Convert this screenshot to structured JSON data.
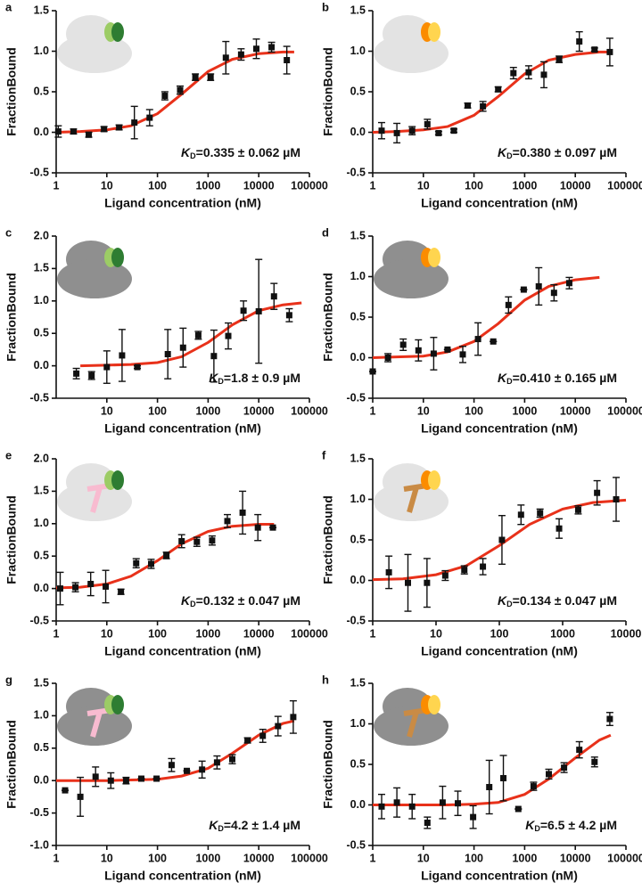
{
  "chart_data": [
    {
      "type": "scatter",
      "label": "a",
      "xlabel": "Ligand concentration (nM)",
      "ylabel": "FractionBound",
      "xlog": true,
      "xlim": [
        1,
        100000
      ],
      "xticks": [
        1,
        10,
        100,
        1000,
        10000,
        100000
      ],
      "ylim": [
        -0.5,
        1.5
      ],
      "yticks": [
        -0.5,
        {
          "value": 0,
          "label": "0.0"
        },
        0.5,
        {
          "value": 1,
          "label": "1.0"
        },
        1.5
      ],
      "annotation": {
        "symbol": "K",
        "subscript": "D",
        "text": "=0.335 ± 0.062 µM"
      },
      "points": {
        "color": "#111111",
        "x": [
          1.1,
          2.2,
          4.4,
          8.8,
          17.5,
          35,
          70,
          140,
          280,
          560,
          1120,
          2240,
          4480,
          8960,
          17900,
          35800
        ],
        "values": [
          0.01,
          0.01,
          -0.03,
          0.04,
          0.06,
          0.12,
          0.18,
          0.45,
          0.52,
          0.68,
          0.68,
          0.92,
          0.96,
          1.03,
          1.05,
          0.89
        ],
        "errors": [
          0.07,
          0.03,
          0.03,
          0.03,
          0.03,
          0.2,
          0.1,
          0.05,
          0.05,
          0.04,
          0.04,
          0.2,
          0.07,
          0.12,
          0.06,
          0.17
        ]
      },
      "fit": {
        "color": "#e8311a",
        "x": [
          1,
          3,
          10,
          30,
          100,
          300,
          1000,
          3000,
          10000,
          30000,
          50000
        ],
        "values": [
          0,
          0.01,
          0.03,
          0.08,
          0.23,
          0.47,
          0.75,
          0.9,
          0.97,
          0.99,
          0.99
        ]
      }
    },
    {
      "type": "scatter",
      "label": "b",
      "xlabel": "Ligand concentration (nM)",
      "ylabel": "FractionBound",
      "xlog": true,
      "xlim": [
        1,
        100000
      ],
      "xticks": [
        1,
        10,
        100,
        1000,
        10000,
        100000
      ],
      "ylim": [
        -0.5,
        1.5
      ],
      "yticks": [
        -0.5,
        {
          "value": 0,
          "label": "0.0"
        },
        0.5,
        {
          "value": 1,
          "label": "1.0"
        },
        1.5
      ],
      "annotation": {
        "symbol": "K",
        "subscript": "D",
        "text": "=0.380 ± 0.097 µM"
      },
      "points": {
        "color": "#111111",
        "x": [
          1.5,
          3,
          6,
          12,
          20,
          40,
          75,
          150,
          300,
          600,
          1200,
          2400,
          4800,
          12000,
          24000,
          48000
        ],
        "values": [
          0.02,
          -0.01,
          0.02,
          0.1,
          -0.01,
          0.02,
          0.33,
          0.32,
          0.53,
          0.73,
          0.74,
          0.71,
          0.9,
          1.12,
          1.02,
          0.99
        ],
        "errors": [
          0.1,
          0.12,
          0.05,
          0.06,
          0.02,
          0.02,
          0.03,
          0.06,
          0.03,
          0.07,
          0.08,
          0.16,
          0.04,
          0.12,
          0.02,
          0.17
        ]
      },
      "fit": {
        "color": "#e8311a",
        "x": [
          1,
          3,
          10,
          30,
          100,
          300,
          1000,
          3000,
          10000,
          30000,
          50000
        ],
        "values": [
          0,
          0.01,
          0.03,
          0.07,
          0.21,
          0.44,
          0.72,
          0.89,
          0.96,
          0.99,
          0.99
        ]
      }
    },
    {
      "type": "scatter",
      "label": "c",
      "xlabel": "Ligand concentration (nM)",
      "ylabel": "FractionBound",
      "xlog": true,
      "xlim": [
        1,
        100000
      ],
      "xticks": [
        10,
        100,
        1000,
        10000,
        100000
      ],
      "ylim": [
        -0.5,
        2.0
      ],
      "yticks": [
        -0.5,
        {
          "value": 0,
          "label": "0.0"
        },
        0.5,
        {
          "value": 1,
          "label": "1.0"
        },
        1.5,
        {
          "value": 2,
          "label": "2.0"
        }
      ],
      "annotation": {
        "symbol": "K",
        "subscript": "D",
        "text": "=1.8 ± 0.9 µM"
      },
      "points": {
        "color": "#111111",
        "x": [
          2.5,
          5,
          10,
          20,
          40,
          160,
          320,
          640,
          1300,
          2500,
          5000,
          10000,
          20000,
          40000
        ],
        "values": [
          -0.12,
          -0.15,
          -0.02,
          0.16,
          -0.02,
          0.18,
          0.28,
          0.47,
          0.15,
          0.46,
          0.85,
          0.84,
          1.07,
          0.78
        ],
        "errors": [
          0.08,
          0.06,
          0.25,
          0.4,
          0.02,
          0.38,
          0.3,
          0.06,
          0.4,
          0.2,
          0.15,
          0.8,
          0.2,
          0.1
        ]
      },
      "fit": {
        "color": "#e8311a",
        "x": [
          3,
          10,
          30,
          100,
          300,
          1000,
          3000,
          10000,
          30000,
          70000
        ],
        "values": [
          0,
          0.01,
          0.02,
          0.05,
          0.14,
          0.36,
          0.63,
          0.85,
          0.94,
          0.97
        ]
      }
    },
    {
      "type": "scatter",
      "label": "d",
      "xlabel": "Ligand concentration (nM)",
      "ylabel": "FractionBound",
      "xlog": true,
      "xlim": [
        1,
        100000
      ],
      "xticks": [
        1,
        10,
        100,
        1000,
        10000,
        100000
      ],
      "ylim": [
        -0.5,
        1.5
      ],
      "yticks": [
        -0.5,
        {
          "value": 0,
          "label": "0.0"
        },
        0.5,
        {
          "value": 1,
          "label": "1.0"
        },
        1.5
      ],
      "annotation": {
        "symbol": "K",
        "subscript": "D",
        "text": "=0.410 ± 0.165 µM"
      },
      "points": {
        "color": "#111111",
        "x": [
          1,
          2,
          4,
          8,
          16,
          30,
          60,
          120,
          240,
          480,
          960,
          1900,
          3800,
          7600
        ],
        "values": [
          -0.17,
          0,
          0.16,
          0.09,
          0.05,
          0.1,
          0.04,
          0.23,
          0.2,
          0.65,
          0.84,
          0.88,
          0.8,
          0.92
        ],
        "errors": [
          0,
          0.05,
          0.07,
          0.13,
          0.2,
          0,
          0.1,
          0.2,
          0,
          0.1,
          0,
          0.23,
          0.1,
          0.07
        ]
      },
      "fit": {
        "color": "#e8311a",
        "x": [
          1,
          3,
          10,
          30,
          100,
          300,
          1000,
          3000,
          10000,
          30000
        ],
        "values": [
          0,
          0.01,
          0.02,
          0.07,
          0.2,
          0.42,
          0.71,
          0.88,
          0.96,
          0.99
        ]
      }
    },
    {
      "type": "scatter",
      "label": "e",
      "xlabel": "Ligand concentration (nM)",
      "ylabel": "FractionBound",
      "xlog": true,
      "xlim": [
        1,
        100000
      ],
      "xticks": [
        1,
        10,
        100,
        1000,
        10000,
        100000
      ],
      "ylim": [
        -0.5,
        2.0
      ],
      "yticks": [
        -0.5,
        {
          "value": 0,
          "label": "0.0"
        },
        0.5,
        {
          "value": 1,
          "label": "1.0"
        },
        1.5,
        {
          "value": 2,
          "label": "2.0"
        }
      ],
      "annotation": {
        "symbol": "K",
        "subscript": "D",
        "text": "=0.132 ± 0.047 µM"
      },
      "points": {
        "color": "#111111",
        "x": [
          1.2,
          2.4,
          4.8,
          9.5,
          19,
          38,
          75,
          150,
          300,
          600,
          1200,
          2400,
          4800,
          9600,
          19000
        ],
        "values": [
          0,
          0.02,
          0.07,
          0.03,
          -0.05,
          0.39,
          0.38,
          0.51,
          0.73,
          0.72,
          0.74,
          1.04,
          1.17,
          0.94,
          0.94
        ],
        "errors": [
          0.25,
          0.07,
          0.18,
          0.25,
          0.04,
          0.07,
          0.07,
          0.05,
          0.1,
          0.07,
          0.07,
          0.1,
          0.33,
          0.2,
          0
        ]
      },
      "fit": {
        "color": "#e8311a",
        "x": [
          1,
          3,
          10,
          30,
          100,
          300,
          1000,
          3000,
          10000,
          20000
        ],
        "values": [
          0.01,
          0.02,
          0.07,
          0.19,
          0.43,
          0.69,
          0.88,
          0.96,
          0.99,
          0.99
        ]
      }
    },
    {
      "type": "scatter",
      "label": "f",
      "xlabel": "Ligand concentration (nM)",
      "ylabel": "FractionBound",
      "xlog": true,
      "xlim": [
        1,
        10000
      ],
      "xticks": [
        1,
        10,
        100,
        1000,
        10000
      ],
      "ylim": [
        -0.5,
        1.5
      ],
      "yticks": [
        -0.5,
        {
          "value": 0,
          "label": "0.0"
        },
        0.5,
        {
          "value": 1,
          "label": "1.0"
        },
        1.5
      ],
      "annotation": {
        "symbol": "K",
        "subscript": "D",
        "text": "=0.134 ± 0.047 µM"
      },
      "points": {
        "color": "#111111",
        "x": [
          1.8,
          3.6,
          7.2,
          14,
          28,
          55,
          110,
          220,
          440,
          880,
          1760,
          3500,
          7000
        ],
        "values": [
          0.1,
          -0.03,
          -0.03,
          0.06,
          0.13,
          0.17,
          0.5,
          0.81,
          0.83,
          0.64,
          0.87,
          1.08,
          1.0
        ],
        "errors": [
          0.2,
          0.35,
          0.3,
          0.06,
          0.05,
          0.1,
          0.3,
          0.12,
          0.05,
          0.12,
          0.05,
          0.15,
          0.27
        ]
      },
      "fit": {
        "color": "#e8311a",
        "x": [
          1,
          3,
          10,
          30,
          100,
          300,
          1000,
          3000,
          10000
        ],
        "values": [
          0.01,
          0.02,
          0.07,
          0.18,
          0.43,
          0.69,
          0.88,
          0.96,
          0.99
        ]
      }
    },
    {
      "type": "scatter",
      "label": "g",
      "xlabel": "Ligand concentration (nM)",
      "ylabel": "FractionBound",
      "xlog": true,
      "xlim": [
        1,
        100000
      ],
      "xticks": [
        1,
        10,
        100,
        1000,
        10000,
        100000
      ],
      "ylim": [
        -1.0,
        1.5
      ],
      "yticks": [
        {
          "value": -1,
          "label": "-1.0"
        },
        -0.5,
        {
          "value": 0,
          "label": "0.0"
        },
        0.5,
        {
          "value": 1,
          "label": "1.0"
        },
        1.5
      ],
      "annotation": {
        "symbol": "K",
        "subscript": "D",
        "text": "=4.2 ± 1.4 µM"
      },
      "points": {
        "color": "#111111",
        "x": [
          1.5,
          3,
          6,
          12,
          24,
          48,
          96,
          190,
          380,
          760,
          1500,
          3000,
          6000,
          12000,
          24000,
          48000
        ],
        "values": [
          -0.15,
          -0.25,
          0.06,
          0,
          0,
          0.03,
          0.03,
          0.24,
          0.15,
          0.17,
          0.28,
          0.33,
          0.62,
          0.69,
          0.84,
          0.98
        ],
        "errors": [
          0,
          0.3,
          0.15,
          0.12,
          0.05,
          0,
          0,
          0.1,
          0,
          0.13,
          0.1,
          0.07,
          0.04,
          0.1,
          0.15,
          0.25
        ]
      },
      "fit": {
        "color": "#e8311a",
        "x": [
          1,
          3,
          10,
          30,
          100,
          300,
          1000,
          3000,
          10000,
          30000,
          50000
        ],
        "values": [
          0,
          0,
          0,
          0.01,
          0.02,
          0.07,
          0.19,
          0.42,
          0.7,
          0.88,
          0.92
        ]
      }
    },
    {
      "type": "scatter",
      "label": "h",
      "xlabel": "Ligand concentration (nM)",
      "ylabel": "FractionBound",
      "xlog": true,
      "xlim": [
        1,
        100000
      ],
      "xticks": [
        1,
        10,
        100,
        1000,
        10000,
        100000
      ],
      "ylim": [
        -0.5,
        1.5
      ],
      "yticks": [
        -0.5,
        {
          "value": 0,
          "label": "0.0"
        },
        0.5,
        {
          "value": 1,
          "label": "1.0"
        },
        1.5
      ],
      "annotation": {
        "symbol": "K",
        "subscript": "D",
        "text": "=6.5 ± 4.2 µM"
      },
      "points": {
        "color": "#111111",
        "x": [
          1.5,
          3,
          6,
          12,
          24,
          48,
          96,
          200,
          380,
          750,
          1500,
          3000,
          6000,
          12000,
          24000,
          48000
        ],
        "values": [
          -0.02,
          0.03,
          -0.02,
          -0.22,
          0.03,
          0.02,
          -0.15,
          0.22,
          0.33,
          -0.05,
          0.23,
          0.38,
          0.46,
          0.68,
          0.53,
          1.06
        ],
        "errors": [
          0.15,
          0.18,
          0.15,
          0.07,
          0.2,
          0.15,
          0.14,
          0.33,
          0.28,
          0,
          0.05,
          0.06,
          0.06,
          0.1,
          0.06,
          0.08
        ]
      },
      "fit": {
        "color": "#e8311a",
        "x": [
          1,
          3,
          10,
          30,
          100,
          300,
          1000,
          3000,
          10000,
          30000,
          50000
        ],
        "values": [
          0,
          0,
          0,
          0,
          0.01,
          0.03,
          0.13,
          0.32,
          0.58,
          0.8,
          0.86
        ]
      }
    }
  ]
}
